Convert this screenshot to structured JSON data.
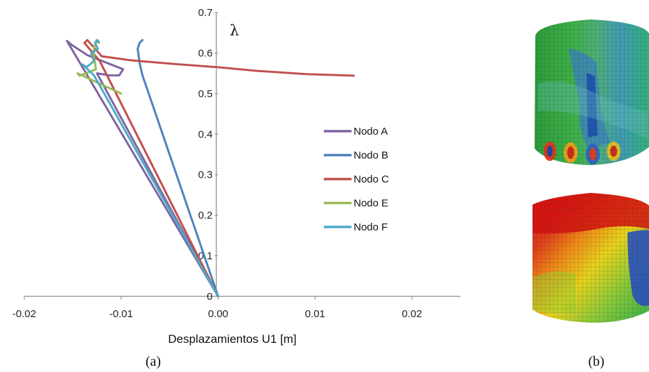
{
  "chart_data": {
    "type": "line",
    "xlabel": "Desplazamientos U1 [m]",
    "ylabel": "λ",
    "xlim": [
      -0.02,
      0.025
    ],
    "ylim": [
      0,
      0.7
    ],
    "x_ticks": [
      "-0.02",
      "-0.01",
      "0.00",
      "0.01",
      "0.02"
    ],
    "x_tick_values": [
      -0.02,
      -0.01,
      0.0,
      0.01,
      0.02
    ],
    "y_ticks": [
      "0",
      "0.1",
      "0.2",
      "0.3",
      "0.4",
      "0.5",
      "0.6",
      "0.7"
    ],
    "y_tick_values": [
      0,
      0.1,
      0.2,
      0.3,
      0.4,
      0.5,
      0.6,
      0.7
    ],
    "grid": false,
    "legend_position": "right",
    "series": [
      {
        "name": "Nodo A",
        "color": "#8064A2",
        "x": [
          0.0,
          -0.0156,
          -0.0151,
          -0.0135,
          -0.0098,
          -0.0102,
          -0.0112,
          -0.0125,
          0.0
        ],
        "y": [
          0.0,
          0.63,
          0.62,
          0.595,
          0.56,
          0.545,
          0.545,
          0.55,
          0.0
        ]
      },
      {
        "name": "Nodo B",
        "color": "#4F81BD",
        "x": [
          0.0,
          -0.0078,
          -0.0081,
          -0.0082,
          -0.0083,
          -0.0081,
          -0.0078,
          -0.0079
        ],
        "y": [
          0.0,
          0.545,
          0.575,
          0.595,
          0.61,
          0.625,
          0.632,
          0.63
        ]
      },
      {
        "name": "Nodo C",
        "color": "#C0504D",
        "x": [
          0.0,
          -0.0122,
          -0.0138,
          -0.0135,
          -0.012,
          -0.009,
          -0.004,
          0.0,
          0.004,
          0.009,
          0.014
        ],
        "y": [
          0.0,
          0.58,
          0.625,
          0.632,
          0.592,
          0.582,
          0.572,
          0.565,
          0.556,
          0.548,
          0.544
        ]
      },
      {
        "name": "Nodo E",
        "color": "#9BBB59",
        "x": [
          -0.01,
          -0.0145,
          -0.0143,
          -0.0126,
          -0.0128,
          -0.0128,
          -0.0125,
          -0.0123
        ],
        "y": [
          0.5,
          0.55,
          0.544,
          0.56,
          0.59,
          0.615,
          0.63,
          0.625
        ]
      },
      {
        "name": "Nodo F",
        "color": "#4BACC6",
        "x": [
          0.0,
          -0.0128,
          -0.014,
          -0.0136,
          -0.0128,
          -0.0131,
          -0.0124,
          -0.0127,
          -0.0125,
          -0.0123
        ],
        "y": [
          0.0,
          0.545,
          0.572,
          0.565,
          0.58,
          0.6,
          0.61,
          0.625,
          0.632,
          0.628
        ]
      }
    ]
  },
  "captions": {
    "left": "(a)",
    "right": "(b)"
  },
  "images": {
    "top": "silo-deformed-top",
    "bottom": "silo-deformed-bottom"
  }
}
